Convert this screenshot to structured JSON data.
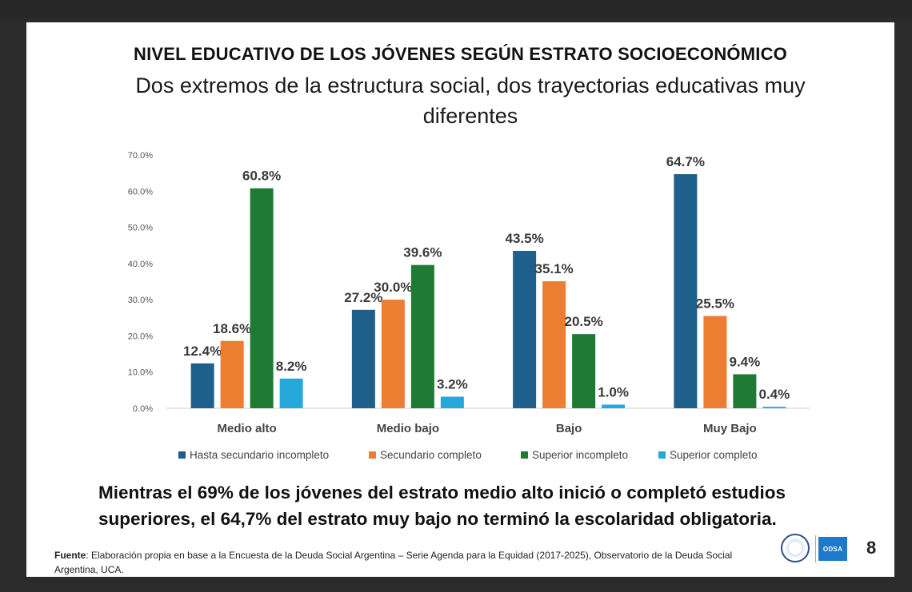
{
  "slide": {
    "title": "NIVEL EDUCATIVO DE LOS JÓVENES SEGÚN ESTRATO SOCIOECONÓMICO",
    "subtitle": "Dos extremos de la estructura social, dos trayectorias educativas muy diferentes",
    "conclusion": "Mientras el 69% de los jóvenes del estrato medio alto inició o completó estudios superiores, el 64,7% del estrato muy bajo no terminó la escolaridad obligatoria.",
    "source_label": "Fuente",
    "source_text": ": Elaboración propia en base a la Encuesta de la Deuda Social Argentina – Serie Agenda para la Equidad (2017-2025), Observatorio de la Deuda Social Argentina, UCA.",
    "logo_text": "ODSA",
    "page_number": "8"
  },
  "chart_data": {
    "type": "bar",
    "categories": [
      "Medio alto",
      "Medio bajo",
      "Bajo",
      "Muy Bajo"
    ],
    "series": [
      {
        "name": "Hasta secundario incompleto",
        "color": "#1f5f8b",
        "values": [
          12.4,
          27.2,
          43.5,
          64.7
        ],
        "labels": [
          "12.4%",
          "27.2%",
          "43.5%",
          "64.7%"
        ]
      },
      {
        "name": "Secundario completo",
        "color": "#ed7d31",
        "values": [
          18.6,
          30.0,
          35.1,
          25.5
        ],
        "labels": [
          "18.6%",
          "30.0%",
          "35.1%",
          "25.5%"
        ]
      },
      {
        "name": "Superior incompleto",
        "color": "#1f7a33",
        "values": [
          60.8,
          39.6,
          20.5,
          9.4
        ],
        "labels": [
          "60.8%",
          "39.6%",
          "20.5%",
          "9.4%"
        ]
      },
      {
        "name": "Superior completo",
        "color": "#27a8dd",
        "values": [
          8.2,
          3.2,
          1.0,
          0.4
        ],
        "labels": [
          "8.2%",
          "3.2%",
          "1.0%",
          "0.4%"
        ]
      }
    ],
    "yticks": [
      "0.0%",
      "10.0%",
      "20.0%",
      "30.0%",
      "40.0%",
      "50.0%",
      "60.0%",
      "70.0%"
    ],
    "ylim": [
      0,
      70
    ],
    "grid": false,
    "legend": "bottom"
  }
}
